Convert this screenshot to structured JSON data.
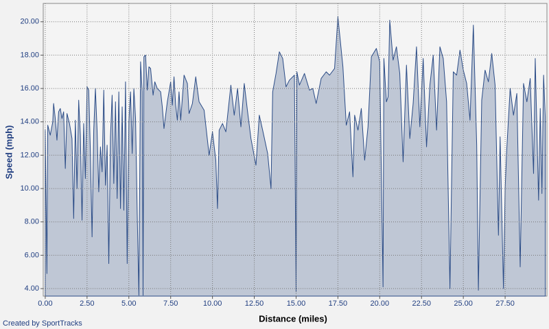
{
  "chart_data": {
    "type": "area",
    "xlabel": "Distance (miles)",
    "ylabel": "Speed (mph)",
    "footer": "Created by SportTracks",
    "color": "#2a4b86",
    "fill": "#bfc7d5",
    "grid": true,
    "xlim": [
      -0.12,
      30.0
    ],
    "ylim": [
      3.55,
      21.1
    ],
    "xticks": [
      {
        "value": 0,
        "label": "0.00"
      },
      {
        "value": 2.5,
        "label": "2.50"
      },
      {
        "value": 5,
        "label": "5.00"
      },
      {
        "value": 7.5,
        "label": "7.50"
      },
      {
        "value": 10,
        "label": "10.00"
      },
      {
        "value": 12.5,
        "label": "12.50"
      },
      {
        "value": 15,
        "label": "15.00"
      },
      {
        "value": 17.5,
        "label": "17.50"
      },
      {
        "value": 20,
        "label": "20.00"
      },
      {
        "value": 22.5,
        "label": "22.50"
      },
      {
        "value": 25,
        "label": "25.00"
      },
      {
        "value": 27.5,
        "label": "27.50"
      }
    ],
    "yticks": [
      {
        "value": 4,
        "label": "4.00"
      },
      {
        "value": 6,
        "label": "6.00"
      },
      {
        "value": 8,
        "label": "8.00"
      },
      {
        "value": 10,
        "label": "10.00"
      },
      {
        "value": 12,
        "label": "12.00"
      },
      {
        "value": 14,
        "label": "14.00"
      },
      {
        "value": 16,
        "label": "16.00"
      },
      {
        "value": 18,
        "label": "18.00"
      },
      {
        "value": 20,
        "label": "20.00"
      }
    ],
    "x": [
      0.0,
      0.1,
      0.15,
      0.3,
      0.45,
      0.5,
      0.6,
      0.7,
      0.8,
      0.9,
      1.0,
      1.1,
      1.2,
      1.3,
      1.45,
      1.6,
      1.7,
      1.8,
      1.9,
      2.0,
      2.1,
      2.2,
      2.3,
      2.4,
      2.5,
      2.6,
      2.7,
      2.8,
      2.9,
      3.0,
      3.1,
      3.2,
      3.3,
      3.4,
      3.5,
      3.6,
      3.7,
      3.8,
      3.9,
      4.0,
      4.1,
      4.2,
      4.3,
      4.4,
      4.5,
      4.6,
      4.7,
      4.8,
      4.9,
      5.0,
      5.1,
      5.2,
      5.3,
      5.4,
      5.5,
      5.6,
      5.7,
      5.8,
      5.85,
      5.9,
      6.0,
      6.1,
      6.2,
      6.3,
      6.45,
      6.55,
      6.7,
      6.9,
      7.0,
      7.1,
      7.3,
      7.5,
      7.6,
      7.7,
      7.8,
      7.9,
      8.0,
      8.1,
      8.3,
      8.5,
      8.6,
      8.8,
      9.0,
      9.2,
      9.5,
      9.8,
      10.0,
      10.2,
      10.3,
      10.4,
      10.6,
      10.8,
      11.1,
      11.3,
      11.5,
      11.7,
      11.9,
      12.1,
      12.3,
      12.6,
      12.8,
      13.0,
      13.3,
      13.5,
      13.6,
      13.8,
      14.0,
      14.2,
      14.4,
      14.6,
      14.9,
      15.0,
      15.05,
      15.2,
      15.5,
      15.8,
      16.0,
      16.2,
      16.5,
      16.8,
      17.0,
      17.3,
      17.5,
      17.8,
      18.0,
      18.2,
      18.4,
      18.5,
      18.7,
      18.9,
      19.1,
      19.3,
      19.5,
      19.8,
      20.0,
      20.2,
      20.25,
      20.4,
      20.5,
      20.6,
      20.8,
      21.0,
      21.2,
      21.4,
      21.6,
      21.8,
      22.0,
      22.2,
      22.4,
      22.6,
      22.8,
      23.0,
      23.2,
      23.4,
      23.6,
      23.8,
      24.0,
      24.2,
      24.4,
      24.6,
      24.8,
      25.0,
      25.2,
      25.4,
      25.6,
      25.8,
      25.9,
      26.1,
      26.3,
      26.5,
      26.7,
      26.9,
      27.1,
      27.2,
      27.4,
      27.5,
      27.6,
      27.8,
      28.0,
      28.2,
      28.4,
      28.6,
      28.8,
      29.0,
      29.2,
      29.3,
      29.5,
      29.6,
      29.7,
      29.8,
      29.9
    ],
    "values": [
      13.5,
      4.9,
      13.8,
      13.2,
      14.0,
      15.1,
      14.2,
      12.9,
      14.6,
      14.8,
      14.2,
      14.6,
      11.2,
      14.5,
      13.9,
      13.0,
      8.2,
      14.1,
      10.0,
      15.3,
      13.2,
      8.1,
      13.9,
      10.6,
      16.1,
      15.9,
      12.2,
      7.1,
      13.5,
      16.0,
      13.5,
      9.8,
      12.5,
      11.0,
      15.9,
      10.2,
      12.6,
      5.5,
      13.1,
      15.6,
      10.3,
      15.2,
      9.4,
      15.8,
      8.8,
      14.9,
      8.7,
      16.4,
      5.5,
      14.0,
      15.8,
      12.1,
      16.0,
      14.2,
      8.5,
      3.6,
      17.6,
      15.8,
      3.6,
      17.9,
      18.0,
      15.9,
      17.3,
      17.2,
      15.6,
      16.4,
      16.0,
      15.8,
      14.9,
      13.6,
      15.2,
      16.4,
      15.0,
      16.7,
      15.0,
      14.1,
      15.8,
      14.1,
      16.8,
      16.3,
      14.5,
      15.1,
      16.7,
      15.2,
      14.7,
      12.0,
      13.4,
      11.7,
      8.8,
      13.5,
      13.9,
      13.4,
      16.2,
      14.4,
      16.0,
      13.7,
      16.3,
      14.6,
      13.0,
      11.4,
      14.4,
      13.5,
      12.1,
      10.0,
      15.8,
      16.9,
      18.2,
      17.8,
      16.1,
      16.5,
      16.8,
      3.8,
      17.0,
      16.2,
      16.9,
      15.9,
      16.0,
      15.1,
      16.6,
      17.0,
      16.8,
      17.2,
      20.3,
      17.3,
      13.8,
      14.6,
      10.7,
      14.4,
      13.5,
      14.8,
      11.7,
      13.7,
      17.9,
      18.4,
      17.6,
      4.1,
      17.8,
      15.2,
      15.5,
      20.1,
      17.7,
      18.5,
      16.9,
      11.6,
      17.4,
      13.0,
      15.1,
      18.5,
      13.7,
      17.8,
      12.5,
      16.2,
      18.0,
      13.5,
      18.5,
      17.8,
      15.2,
      4.0,
      17.0,
      16.8,
      18.3,
      17.1,
      16.3,
      14.1,
      19.8,
      12.6,
      3.9,
      15.3,
      17.1,
      16.4,
      18.1,
      16.2,
      7.2,
      13.1,
      4.0,
      10.0,
      12.4,
      16.0,
      14.4,
      15.7,
      5.3,
      16.3,
      15.2,
      16.6,
      10.9,
      17.8,
      9.3,
      14.8,
      9.7,
      16.8,
      14.3
    ]
  }
}
